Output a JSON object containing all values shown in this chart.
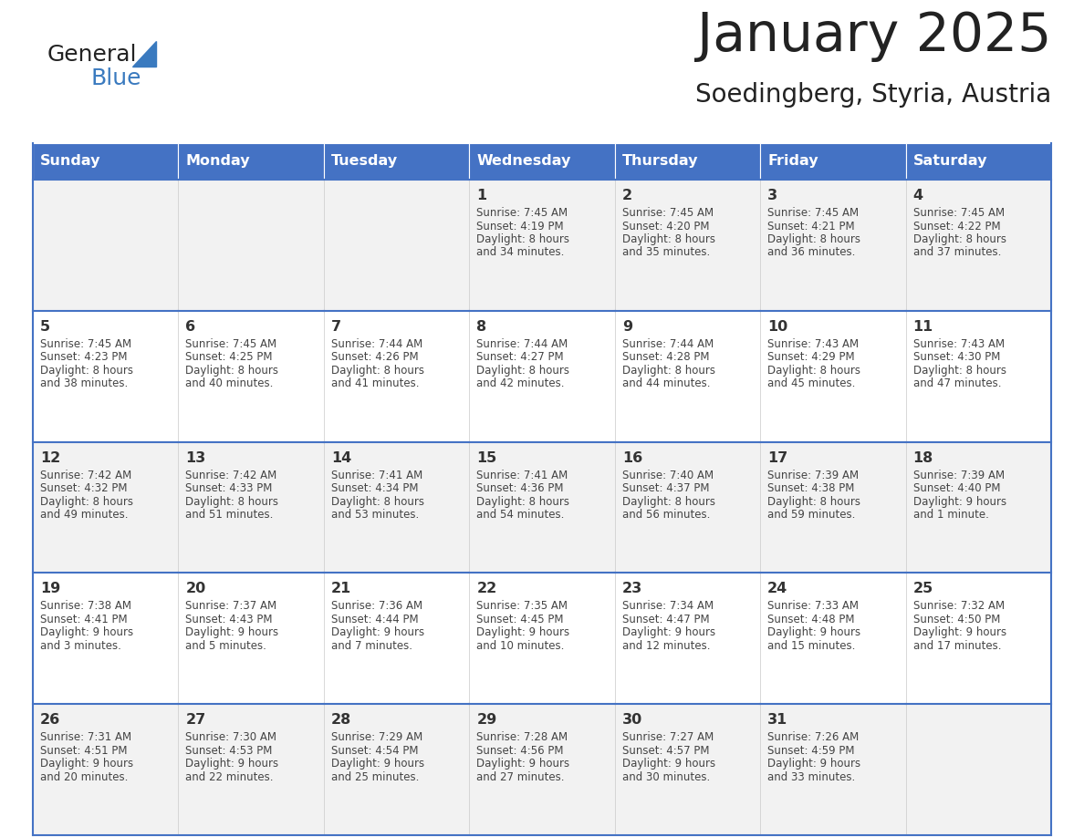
{
  "title": "January 2025",
  "subtitle": "Soedingberg, Styria, Austria",
  "header_bg": "#4472c4",
  "header_text_color": "#ffffff",
  "row_bg_even": "#f2f2f2",
  "row_bg_odd": "#ffffff",
  "border_color": "#4472c4",
  "day_names": [
    "Sunday",
    "Monday",
    "Tuesday",
    "Wednesday",
    "Thursday",
    "Friday",
    "Saturday"
  ],
  "title_color": "#222222",
  "subtitle_color": "#222222",
  "day_number_color": "#333333",
  "cell_text_color": "#444444",
  "calendar": [
    [
      {
        "day": null,
        "sunrise": null,
        "sunset": null,
        "daylight": null
      },
      {
        "day": null,
        "sunrise": null,
        "sunset": null,
        "daylight": null
      },
      {
        "day": null,
        "sunrise": null,
        "sunset": null,
        "daylight": null
      },
      {
        "day": 1,
        "sunrise": "7:45 AM",
        "sunset": "4:19 PM",
        "daylight": "8 hours and 34 minutes."
      },
      {
        "day": 2,
        "sunrise": "7:45 AM",
        "sunset": "4:20 PM",
        "daylight": "8 hours and 35 minutes."
      },
      {
        "day": 3,
        "sunrise": "7:45 AM",
        "sunset": "4:21 PM",
        "daylight": "8 hours and 36 minutes."
      },
      {
        "day": 4,
        "sunrise": "7:45 AM",
        "sunset": "4:22 PM",
        "daylight": "8 hours and 37 minutes."
      }
    ],
    [
      {
        "day": 5,
        "sunrise": "7:45 AM",
        "sunset": "4:23 PM",
        "daylight": "8 hours and 38 minutes."
      },
      {
        "day": 6,
        "sunrise": "7:45 AM",
        "sunset": "4:25 PM",
        "daylight": "8 hours and 40 minutes."
      },
      {
        "day": 7,
        "sunrise": "7:44 AM",
        "sunset": "4:26 PM",
        "daylight": "8 hours and 41 minutes."
      },
      {
        "day": 8,
        "sunrise": "7:44 AM",
        "sunset": "4:27 PM",
        "daylight": "8 hours and 42 minutes."
      },
      {
        "day": 9,
        "sunrise": "7:44 AM",
        "sunset": "4:28 PM",
        "daylight": "8 hours and 44 minutes."
      },
      {
        "day": 10,
        "sunrise": "7:43 AM",
        "sunset": "4:29 PM",
        "daylight": "8 hours and 45 minutes."
      },
      {
        "day": 11,
        "sunrise": "7:43 AM",
        "sunset": "4:30 PM",
        "daylight": "8 hours and 47 minutes."
      }
    ],
    [
      {
        "day": 12,
        "sunrise": "7:42 AM",
        "sunset": "4:32 PM",
        "daylight": "8 hours and 49 minutes."
      },
      {
        "day": 13,
        "sunrise": "7:42 AM",
        "sunset": "4:33 PM",
        "daylight": "8 hours and 51 minutes."
      },
      {
        "day": 14,
        "sunrise": "7:41 AM",
        "sunset": "4:34 PM",
        "daylight": "8 hours and 53 minutes."
      },
      {
        "day": 15,
        "sunrise": "7:41 AM",
        "sunset": "4:36 PM",
        "daylight": "8 hours and 54 minutes."
      },
      {
        "day": 16,
        "sunrise": "7:40 AM",
        "sunset": "4:37 PM",
        "daylight": "8 hours and 56 minutes."
      },
      {
        "day": 17,
        "sunrise": "7:39 AM",
        "sunset": "4:38 PM",
        "daylight": "8 hours and 59 minutes."
      },
      {
        "day": 18,
        "sunrise": "7:39 AM",
        "sunset": "4:40 PM",
        "daylight": "9 hours and 1 minute."
      }
    ],
    [
      {
        "day": 19,
        "sunrise": "7:38 AM",
        "sunset": "4:41 PM",
        "daylight": "9 hours and 3 minutes."
      },
      {
        "day": 20,
        "sunrise": "7:37 AM",
        "sunset": "4:43 PM",
        "daylight": "9 hours and 5 minutes."
      },
      {
        "day": 21,
        "sunrise": "7:36 AM",
        "sunset": "4:44 PM",
        "daylight": "9 hours and 7 minutes."
      },
      {
        "day": 22,
        "sunrise": "7:35 AM",
        "sunset": "4:45 PM",
        "daylight": "9 hours and 10 minutes."
      },
      {
        "day": 23,
        "sunrise": "7:34 AM",
        "sunset": "4:47 PM",
        "daylight": "9 hours and 12 minutes."
      },
      {
        "day": 24,
        "sunrise": "7:33 AM",
        "sunset": "4:48 PM",
        "daylight": "9 hours and 15 minutes."
      },
      {
        "day": 25,
        "sunrise": "7:32 AM",
        "sunset": "4:50 PM",
        "daylight": "9 hours and 17 minutes."
      }
    ],
    [
      {
        "day": 26,
        "sunrise": "7:31 AM",
        "sunset": "4:51 PM",
        "daylight": "9 hours and 20 minutes."
      },
      {
        "day": 27,
        "sunrise": "7:30 AM",
        "sunset": "4:53 PM",
        "daylight": "9 hours and 22 minutes."
      },
      {
        "day": 28,
        "sunrise": "7:29 AM",
        "sunset": "4:54 PM",
        "daylight": "9 hours and 25 minutes."
      },
      {
        "day": 29,
        "sunrise": "7:28 AM",
        "sunset": "4:56 PM",
        "daylight": "9 hours and 27 minutes."
      },
      {
        "day": 30,
        "sunrise": "7:27 AM",
        "sunset": "4:57 PM",
        "daylight": "9 hours and 30 minutes."
      },
      {
        "day": 31,
        "sunrise": "7:26 AM",
        "sunset": "4:59 PM",
        "daylight": "9 hours and 33 minutes."
      },
      {
        "day": null,
        "sunrise": null,
        "sunset": null,
        "daylight": null
      }
    ]
  ],
  "logo_general_color": "#222222",
  "logo_blue_color": "#3a7abf",
  "logo_triangle_color": "#3a7abf"
}
